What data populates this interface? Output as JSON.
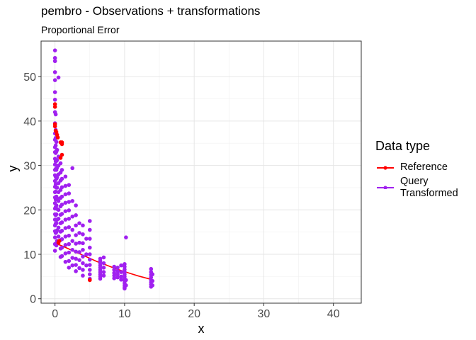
{
  "chart_data": {
    "type": "scatter",
    "title": "pembro - Observations + transformations",
    "subtitle": "Proportional Error",
    "xlabel": "x",
    "ylabel": "y",
    "xlim": [
      -2,
      44
    ],
    "ylim": [
      -1,
      58
    ],
    "xticks": [
      0,
      10,
      20,
      30,
      40
    ],
    "yticks": [
      0,
      10,
      20,
      30,
      40,
      50
    ],
    "grid": true,
    "legend_position": "right",
    "legend_title": "Data type",
    "series": [
      {
        "name": "Reference",
        "color": "#ff0000",
        "kind": "line+points",
        "line": {
          "x": [
            0,
            0.5,
            1,
            2,
            3,
            4,
            5,
            6,
            7,
            8,
            9,
            10,
            11,
            12,
            13,
            14
          ],
          "y": [
            12.5,
            12.2,
            11.9,
            11.2,
            10.5,
            9.8,
            9.1,
            8.4,
            7.8,
            7.2,
            6.6,
            6.1,
            5.6,
            5.1,
            4.7,
            4.3
          ]
        },
        "x": [
          0,
          0,
          0,
          0,
          0.1,
          0.2,
          0.3,
          0.4,
          0.5,
          0.6,
          0.8,
          1.0,
          1.0,
          1.0,
          0.8,
          5.0
        ],
        "y": [
          43.8,
          43.2,
          39.3,
          38.8,
          37.8,
          37.5,
          36.9,
          36.3,
          12.6,
          13.0,
          35.2,
          34.8,
          35.2,
          32.4,
          31.7,
          4.2
        ]
      },
      {
        "name": "Query\nTransformed",
        "color": "#a020f0",
        "kind": "points",
        "x": [
          0,
          0,
          0,
          0,
          0,
          0,
          0,
          0,
          0,
          0,
          0,
          0,
          0,
          0,
          0,
          0,
          0,
          0,
          0,
          0,
          0,
          0,
          0,
          0,
          0,
          0,
          0,
          0,
          0,
          0,
          0.1,
          0.1,
          0.1,
          0.1,
          0.1,
          0.1,
          0.1,
          0.1,
          0.1,
          0.1,
          0.1,
          0.1,
          0.1,
          0.1,
          0.1,
          0.2,
          0.2,
          0.2,
          0.2,
          0.2,
          0.2,
          0.2,
          0.2,
          0.2,
          0.2,
          0.2,
          0.2,
          0.3,
          0.3,
          0.3,
          0.3,
          0.3,
          0.3,
          0.3,
          0.3,
          0.3,
          0.3,
          0.5,
          0.5,
          0.5,
          0.5,
          0.5,
          0.5,
          0.5,
          0.5,
          0.5,
          0.5,
          0.5,
          0.8,
          0.8,
          0.8,
          0.8,
          0.8,
          0.8,
          0.8,
          0.8,
          0.8,
          0.8,
          0.8,
          0.8,
          1.0,
          1.0,
          1.0,
          1.0,
          1.0,
          1.0,
          1.0,
          1.0,
          1.0,
          1.0,
          1.0,
          1.5,
          1.5,
          1.5,
          1.5,
          1.5,
          1.5,
          1.5,
          1.5,
          1.5,
          1.5,
          1.5,
          2.0,
          2.0,
          2.0,
          2.0,
          2.0,
          2.0,
          2.0,
          2.0,
          2.0,
          2.0,
          2.0,
          2.5,
          2.5,
          2.5,
          2.5,
          2.5,
          2.5,
          2.5,
          2.5,
          3.0,
          3.0,
          3.0,
          3.0,
          3.0,
          3.0,
          3.0,
          3.0,
          3.0,
          3.5,
          3.5,
          3.5,
          3.5,
          3.5,
          3.5,
          4.0,
          4.0,
          4.0,
          4.0,
          4.0,
          4.0,
          4.0,
          4.0,
          4.5,
          4.5,
          4.5,
          5.0,
          5.0,
          5.0,
          5.0,
          5.0,
          5.0,
          5.0,
          5.0,
          5.0,
          5.0,
          6.5,
          6.5,
          6.5,
          6.5,
          6.5,
          6.5,
          6.5,
          6.5,
          6.5,
          6.5,
          7.0,
          7.0,
          7.0,
          7.0,
          7.0,
          8.5,
          8.5,
          8.5,
          8.5,
          8.5,
          9.0,
          9.0,
          9.0,
          9.0,
          9.5,
          9.5,
          9.5,
          9.5,
          10.0,
          10.0,
          10.0,
          10.0,
          10.0,
          10.0,
          10.0,
          10.0,
          10.0,
          10.0,
          10.0,
          10.0,
          10.2,
          10.2,
          10.2,
          13.8,
          13.8,
          13.8,
          13.8,
          13.8,
          13.8,
          13.8,
          13.8,
          14.0,
          14.0,
          14.0
        ],
        "y": [
          55.9,
          54.2,
          53.5,
          51.0,
          49.2,
          46.5,
          44.8,
          42.0,
          39.5,
          37.2,
          35.8,
          34.1,
          33.0,
          31.5,
          30.2,
          29.0,
          27.8,
          26.5,
          25.2,
          24.0,
          22.8,
          21.5,
          20.3,
          19.0,
          17.8,
          16.5,
          15.2,
          13.8,
          12.3,
          10.8,
          41.5,
          38.0,
          36.2,
          34.5,
          32.8,
          30.9,
          29.2,
          27.5,
          25.8,
          24.1,
          22.3,
          20.6,
          18.8,
          16.9,
          14.8,
          35.3,
          33.1,
          31.0,
          29.0,
          27.0,
          25.0,
          23.0,
          21.0,
          19.0,
          17.0,
          15.0,
          12.0,
          33.5,
          31.2,
          29.5,
          27.3,
          25.0,
          22.6,
          20.2,
          17.8,
          15.4,
          13.0,
          49.8,
          32.0,
          30.0,
          28.0,
          26.0,
          24.0,
          22.0,
          20.0,
          18.0,
          16.0,
          14.0,
          30.5,
          28.4,
          26.6,
          24.5,
          22.7,
          20.8,
          18.9,
          17.0,
          15.1,
          13.2,
          11.3,
          9.4,
          29.0,
          27.0,
          25.1,
          23.0,
          21.2,
          19.1,
          17.2,
          15.3,
          13.4,
          11.5,
          9.6,
          27.5,
          25.4,
          23.5,
          21.6,
          19.7,
          17.8,
          15.9,
          14.0,
          12.1,
          10.2,
          8.3,
          25.6,
          23.7,
          21.8,
          19.9,
          18.0,
          16.1,
          14.2,
          12.3,
          10.4,
          8.5,
          7.0,
          29.4,
          22.0,
          18.5,
          15.5,
          13.0,
          11.0,
          9.2,
          7.5,
          21.0,
          18.8,
          16.5,
          14.3,
          12.4,
          10.6,
          9.0,
          7.6,
          6.2,
          17.0,
          14.8,
          12.6,
          10.5,
          8.7,
          6.9,
          16.5,
          14.5,
          12.5,
          11.0,
          9.5,
          8.0,
          6.5,
          5.2,
          13.5,
          10.0,
          7.5,
          17.5,
          15.5,
          13.5,
          11.5,
          10.0,
          8.8,
          7.6,
          6.5,
          5.5,
          4.5,
          9.0,
          8.5,
          8.0,
          7.5,
          7.0,
          6.5,
          6.0,
          5.5,
          5.0,
          4.5,
          9.3,
          8.0,
          7.0,
          6.0,
          5.2,
          7.2,
          6.5,
          5.8,
          5.2,
          4.6,
          7.0,
          6.2,
          5.5,
          4.8,
          7.5,
          6.0,
          5.0,
          4.3,
          7.8,
          7.2,
          6.6,
          6.0,
          5.5,
          5.0,
          4.5,
          4.0,
          3.5,
          3.0,
          2.6,
          2.3,
          13.8,
          4.2,
          3.0,
          6.7,
          6.0,
          5.4,
          4.8,
          4.2,
          3.7,
          3.2,
          2.7,
          5.5,
          4.0,
          3.0
        ]
      }
    ]
  }
}
